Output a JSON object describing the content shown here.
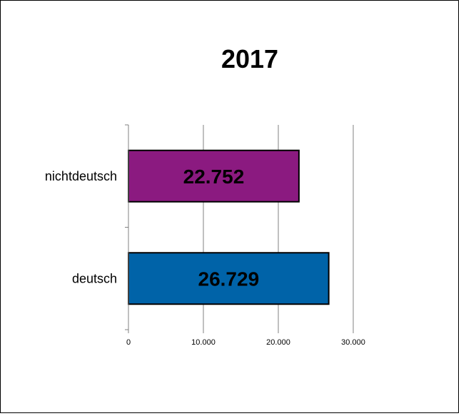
{
  "chart_data": {
    "type": "bar",
    "orientation": "horizontal",
    "title": "2017",
    "categories": [
      "nichtdeutsch",
      "deutsch"
    ],
    "values": [
      22752,
      26729
    ],
    "data_labels": [
      "22.752",
      "26.729"
    ],
    "xlim": [
      0,
      30000
    ],
    "x_ticks": [
      0,
      10000,
      20000,
      30000
    ],
    "x_tick_labels": [
      "0",
      "10.000",
      "20.000",
      "30.000"
    ],
    "xlabel": "",
    "ylabel": "",
    "grid": true,
    "legend": "none",
    "colors": [
      "#8b1a80",
      "#0063a8"
    ]
  }
}
